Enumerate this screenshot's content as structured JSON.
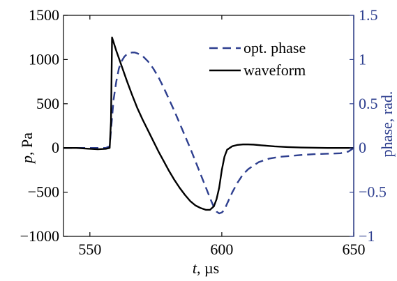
{
  "chart_data": {
    "type": "line",
    "xlabel": {
      "symbol": "t",
      "unit": ", µs"
    },
    "ylabel_left": {
      "symbol": "p",
      "unit": ", Pa"
    },
    "ylabel_right": "phase, rad.",
    "xlim": [
      540,
      650
    ],
    "ylim_left": [
      -1000,
      1500
    ],
    "ylim_right": [
      -1,
      1.5
    ],
    "x_ticks": [
      {
        "value": 550,
        "label": "550"
      },
      {
        "value": 600,
        "label": "600"
      },
      {
        "value": 650,
        "label": "650"
      }
    ],
    "y_ticks_left": [
      {
        "value": 1500,
        "label": "1500"
      },
      {
        "value": 1000,
        "label": "1000"
      },
      {
        "value": 500,
        "label": "500"
      },
      {
        "value": 0,
        "label": "0"
      },
      {
        "value": -500,
        "label": "−500"
      },
      {
        "value": -1000,
        "label": "−1000"
      }
    ],
    "y_ticks_right": [
      {
        "value": 1.5,
        "label": "1.5"
      },
      {
        "value": 1,
        "label": "1"
      },
      {
        "value": 0.5,
        "label": "0.5"
      },
      {
        "value": 0,
        "label": "0"
      },
      {
        "value": -0.5,
        "label": "−0.5"
      },
      {
        "value": -1,
        "label": "−1"
      }
    ],
    "grid": false,
    "legend_position": "top-right",
    "series": [
      {
        "name": "opt. phase",
        "axis": "right",
        "color": "#2e3f8f",
        "style": "dashed",
        "x": [
          540,
          550,
          556,
          557.5,
          558,
          559,
          560,
          561,
          562,
          563,
          564,
          565,
          566,
          567,
          568,
          570,
          572,
          574,
          576,
          578,
          580,
          582,
          584,
          586,
          588,
          590,
          592,
          594,
          596,
          597,
          598,
          599,
          600,
          601,
          602,
          604,
          606,
          608,
          610,
          614,
          618,
          622,
          626,
          630,
          635,
          640,
          645,
          648,
          650
        ],
        "y": [
          0,
          0,
          0,
          0.02,
          0.2,
          0.55,
          0.75,
          0.9,
          0.98,
          1.03,
          1.06,
          1.075,
          1.08,
          1.08,
          1.07,
          1.04,
          0.98,
          0.9,
          0.8,
          0.68,
          0.55,
          0.42,
          0.28,
          0.14,
          0.0,
          -0.15,
          -0.3,
          -0.45,
          -0.6,
          -0.67,
          -0.72,
          -0.74,
          -0.73,
          -0.7,
          -0.63,
          -0.5,
          -0.39,
          -0.3,
          -0.24,
          -0.16,
          -0.12,
          -0.1,
          -0.09,
          -0.08,
          -0.07,
          -0.065,
          -0.06,
          -0.04,
          0.0
        ]
      },
      {
        "name": "waveform",
        "axis": "left",
        "color": "#000000",
        "style": "solid",
        "x": [
          540,
          545,
          550,
          553,
          556,
          557.5,
          558,
          558.4,
          560,
          562,
          564,
          566,
          568,
          570,
          572,
          574,
          576,
          578,
          580,
          582,
          584,
          586,
          588,
          590,
          592,
          594,
          595.5,
          597,
          598,
          599,
          600,
          601,
          602,
          604,
          606,
          608,
          610,
          612,
          615,
          620,
          625,
          630,
          640,
          650
        ],
        "y": [
          0,
          0,
          -10,
          -15,
          -10,
          0,
          300,
          1250,
          1100,
          930,
          760,
          600,
          450,
          320,
          200,
          80,
          -40,
          -150,
          -260,
          -360,
          -450,
          -530,
          -600,
          -650,
          -680,
          -700,
          -700,
          -660,
          -580,
          -450,
          -250,
          -100,
          -20,
          20,
          35,
          40,
          40,
          38,
          30,
          18,
          10,
          5,
          0,
          0
        ]
      }
    ]
  }
}
